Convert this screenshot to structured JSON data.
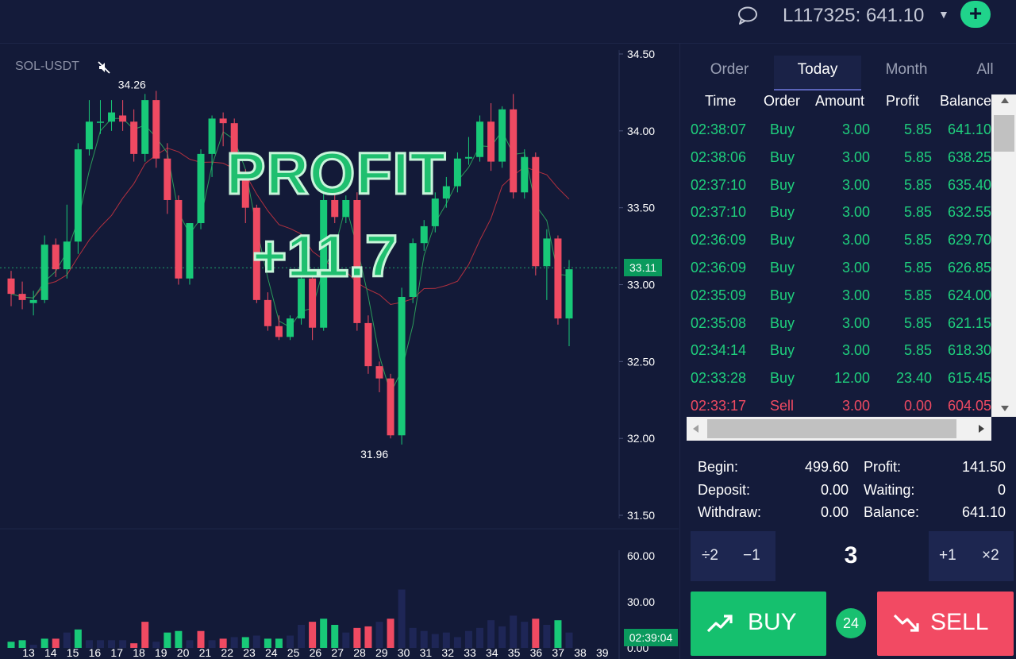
{
  "header": {
    "chat_icon": "chat-bubble-icon",
    "account_label": "L117325: 641.10",
    "add_icon": "plus-icon",
    "add_label": "+"
  },
  "chart": {
    "symbol": "SOL-USDT",
    "mute_icon": "mute-icon",
    "overlay_title": "PROFIT",
    "overlay_value": "+11.7",
    "price_tag": "33.11",
    "time_tag": "02:39:04",
    "colors": {
      "up": "#18c978",
      "down": "#ef4a62",
      "background": "#131a38",
      "ma_fast": "#2a9a5a",
      "ma_slow": "#b2303f",
      "volume_neutral": "#1e2656"
    }
  },
  "chart_data": {
    "type": "candlestick",
    "price_axis": {
      "ylim": [
        31.5,
        34.5
      ],
      "ticks": [
        "34.50",
        "34.00",
        "33.50",
        "33.00",
        "32.50",
        "32.00",
        "31.50"
      ]
    },
    "volume_axis": {
      "ylim": [
        0,
        60
      ],
      "ticks": [
        "60.00",
        "30.00",
        "0.00"
      ]
    },
    "x_ticks": [
      "13",
      "14",
      "15",
      "16",
      "17",
      "18",
      "19",
      "20",
      "21",
      "22",
      "23",
      "24",
      "25",
      "26",
      "27",
      "28",
      "29",
      "30",
      "31",
      "32",
      "33",
      "34",
      "35",
      "36",
      "37",
      "38",
      "39"
    ],
    "annotations": {
      "high_label": "34.26",
      "low_label": "31.96"
    },
    "candles": [
      {
        "o": 33.04,
        "h": 33.09,
        "l": 32.86,
        "c": 32.94
      },
      {
        "o": 32.94,
        "h": 33.02,
        "l": 32.84,
        "c": 32.9
      },
      {
        "o": 32.88,
        "h": 32.96,
        "l": 32.8,
        "c": 32.9
      },
      {
        "o": 32.9,
        "h": 33.32,
        "l": 32.88,
        "c": 33.26
      },
      {
        "o": 33.26,
        "h": 33.3,
        "l": 33.05,
        "c": 33.1
      },
      {
        "o": 33.1,
        "h": 33.52,
        "l": 33.04,
        "c": 33.28
      },
      {
        "o": 33.28,
        "h": 33.92,
        "l": 33.2,
        "c": 33.88
      },
      {
        "o": 33.88,
        "h": 34.2,
        "l": 33.84,
        "c": 34.06
      },
      {
        "o": 34.06,
        "h": 34.2,
        "l": 33.98,
        "c": 34.06
      },
      {
        "o": 34.06,
        "h": 34.2,
        "l": 34.0,
        "c": 34.12
      },
      {
        "o": 34.1,
        "h": 34.2,
        "l": 34.0,
        "c": 34.06
      },
      {
        "o": 34.06,
        "h": 34.14,
        "l": 33.8,
        "c": 33.85
      },
      {
        "o": 33.85,
        "h": 34.24,
        "l": 33.8,
        "c": 34.2
      },
      {
        "o": 34.2,
        "h": 34.26,
        "l": 33.76,
        "c": 33.82
      },
      {
        "o": 33.82,
        "h": 33.92,
        "l": 33.46,
        "c": 33.55
      },
      {
        "o": 33.55,
        "h": 33.58,
        "l": 33.0,
        "c": 33.04
      },
      {
        "o": 33.04,
        "h": 33.4,
        "l": 33.0,
        "c": 33.4
      },
      {
        "o": 33.4,
        "h": 33.88,
        "l": 33.36,
        "c": 33.85
      },
      {
        "o": 33.85,
        "h": 34.1,
        "l": 33.7,
        "c": 34.08
      },
      {
        "o": 34.08,
        "h": 34.12,
        "l": 33.9,
        "c": 34.05
      },
      {
        "o": 34.05,
        "h": 34.08,
        "l": 33.6,
        "c": 33.7
      },
      {
        "o": 33.7,
        "h": 33.75,
        "l": 33.4,
        "c": 33.5
      },
      {
        "o": 33.5,
        "h": 33.52,
        "l": 32.88,
        "c": 32.9
      },
      {
        "o": 32.9,
        "h": 32.95,
        "l": 32.7,
        "c": 32.73
      },
      {
        "o": 32.73,
        "h": 32.8,
        "l": 32.64,
        "c": 32.66
      },
      {
        "o": 32.66,
        "h": 32.8,
        "l": 32.64,
        "c": 32.78
      },
      {
        "o": 32.78,
        "h": 33.1,
        "l": 32.74,
        "c": 33.04
      },
      {
        "o": 33.04,
        "h": 33.08,
        "l": 32.64,
        "c": 32.72
      },
      {
        "o": 32.72,
        "h": 33.6,
        "l": 32.7,
        "c": 33.55
      },
      {
        "o": 33.55,
        "h": 33.62,
        "l": 33.4,
        "c": 33.44
      },
      {
        "o": 33.44,
        "h": 33.58,
        "l": 33.4,
        "c": 33.55
      },
      {
        "o": 33.55,
        "h": 33.6,
        "l": 32.7,
        "c": 32.75
      },
      {
        "o": 32.75,
        "h": 32.8,
        "l": 32.42,
        "c": 32.47
      },
      {
        "o": 32.47,
        "h": 32.5,
        "l": 32.3,
        "c": 32.39
      },
      {
        "o": 32.39,
        "h": 32.42,
        "l": 32.0,
        "c": 32.02
      },
      {
        "o": 32.02,
        "h": 32.98,
        "l": 31.96,
        "c": 32.92
      },
      {
        "o": 32.92,
        "h": 33.3,
        "l": 32.88,
        "c": 33.27
      },
      {
        "o": 33.27,
        "h": 33.42,
        "l": 33.22,
        "c": 33.38
      },
      {
        "o": 33.38,
        "h": 33.6,
        "l": 33.34,
        "c": 33.56
      },
      {
        "o": 33.56,
        "h": 33.7,
        "l": 33.5,
        "c": 33.64
      },
      {
        "o": 33.64,
        "h": 33.86,
        "l": 33.6,
        "c": 33.82
      },
      {
        "o": 33.82,
        "h": 33.96,
        "l": 33.78,
        "c": 33.83
      },
      {
        "o": 33.83,
        "h": 34.1,
        "l": 33.8,
        "c": 34.06
      },
      {
        "o": 34.06,
        "h": 34.18,
        "l": 33.74,
        "c": 33.8
      },
      {
        "o": 33.8,
        "h": 34.16,
        "l": 33.76,
        "c": 34.14
      },
      {
        "o": 34.14,
        "h": 34.24,
        "l": 33.56,
        "c": 33.6
      },
      {
        "o": 33.6,
        "h": 33.88,
        "l": 33.56,
        "c": 33.83
      },
      {
        "o": 33.83,
        "h": 33.86,
        "l": 33.06,
        "c": 33.12
      },
      {
        "o": 33.12,
        "h": 33.36,
        "l": 32.9,
        "c": 33.3
      },
      {
        "o": 33.3,
        "h": 33.32,
        "l": 32.74,
        "c": 32.78
      },
      {
        "o": 32.78,
        "h": 33.16,
        "l": 32.6,
        "c": 33.1
      }
    ],
    "volumes": [
      {
        "v": 4,
        "d": "up"
      },
      {
        "v": 5,
        "d": "up"
      },
      {
        "v": 2,
        "d": "neutral"
      },
      {
        "v": 6,
        "d": "up"
      },
      {
        "v": 6,
        "d": "down"
      },
      {
        "v": 10,
        "d": "neutral"
      },
      {
        "v": 12,
        "d": "up"
      },
      {
        "v": 5,
        "d": "neutral"
      },
      {
        "v": 5,
        "d": "neutral"
      },
      {
        "v": 5,
        "d": "neutral"
      },
      {
        "v": 5,
        "d": "neutral"
      },
      {
        "v": 3,
        "d": "down"
      },
      {
        "v": 17,
        "d": "down"
      },
      {
        "v": 4,
        "d": "neutral"
      },
      {
        "v": 10,
        "d": "up"
      },
      {
        "v": 11,
        "d": "up"
      },
      {
        "v": 5,
        "d": "neutral"
      },
      {
        "v": 11,
        "d": "down"
      },
      {
        "v": 5,
        "d": "neutral"
      },
      {
        "v": 6,
        "d": "down"
      },
      {
        "v": 7,
        "d": "neutral"
      },
      {
        "v": 7,
        "d": "up"
      },
      {
        "v": 8,
        "d": "neutral"
      },
      {
        "v": 6,
        "d": "up"
      },
      {
        "v": 6,
        "d": "up"
      },
      {
        "v": 8,
        "d": "neutral"
      },
      {
        "v": 15,
        "d": "neutral"
      },
      {
        "v": 17,
        "d": "down"
      },
      {
        "v": 19,
        "d": "up"
      },
      {
        "v": 15,
        "d": "up"
      },
      {
        "v": 10,
        "d": "neutral"
      },
      {
        "v": 13,
        "d": "down"
      },
      {
        "v": 14,
        "d": "down"
      },
      {
        "v": 17,
        "d": "neutral"
      },
      {
        "v": 19,
        "d": "down"
      },
      {
        "v": 38,
        "d": "neutral"
      },
      {
        "v": 13,
        "d": "neutral"
      },
      {
        "v": 11,
        "d": "neutral"
      },
      {
        "v": 9,
        "d": "neutral"
      },
      {
        "v": 10,
        "d": "neutral"
      },
      {
        "v": 7,
        "d": "neutral"
      },
      {
        "v": 11,
        "d": "neutral"
      },
      {
        "v": 13,
        "d": "neutral"
      },
      {
        "v": 18,
        "d": "neutral"
      },
      {
        "v": 14,
        "d": "neutral"
      },
      {
        "v": 21,
        "d": "neutral"
      },
      {
        "v": 17,
        "d": "neutral"
      },
      {
        "v": 19,
        "d": "down"
      },
      {
        "v": 15,
        "d": "neutral"
      },
      {
        "v": 18,
        "d": "up"
      },
      {
        "v": 10,
        "d": "neutral"
      }
    ]
  },
  "tabs": [
    "Order",
    "Today",
    "Month",
    "All"
  ],
  "table": {
    "headers": [
      "Time",
      "Order",
      "Amount",
      "Profit",
      "Balance"
    ],
    "rows": [
      {
        "time": "02:38:07",
        "order": "Buy",
        "amount": "3.00",
        "profit": "5.85",
        "balance": "641.10",
        "side": "buy"
      },
      {
        "time": "02:38:06",
        "order": "Buy",
        "amount": "3.00",
        "profit": "5.85",
        "balance": "638.25",
        "side": "buy"
      },
      {
        "time": "02:37:10",
        "order": "Buy",
        "amount": "3.00",
        "profit": "5.85",
        "balance": "635.40",
        "side": "buy"
      },
      {
        "time": "02:37:10",
        "order": "Buy",
        "amount": "3.00",
        "profit": "5.85",
        "balance": "632.55",
        "side": "buy"
      },
      {
        "time": "02:36:09",
        "order": "Buy",
        "amount": "3.00",
        "profit": "5.85",
        "balance": "629.70",
        "side": "buy"
      },
      {
        "time": "02:36:09",
        "order": "Buy",
        "amount": "3.00",
        "profit": "5.85",
        "balance": "626.85",
        "side": "buy"
      },
      {
        "time": "02:35:09",
        "order": "Buy",
        "amount": "3.00",
        "profit": "5.85",
        "balance": "624.00",
        "side": "buy"
      },
      {
        "time": "02:35:08",
        "order": "Buy",
        "amount": "3.00",
        "profit": "5.85",
        "balance": "621.15",
        "side": "buy"
      },
      {
        "time": "02:34:14",
        "order": "Buy",
        "amount": "3.00",
        "profit": "5.85",
        "balance": "618.30",
        "side": "buy"
      },
      {
        "time": "02:33:28",
        "order": "Buy",
        "amount": "12.00",
        "profit": "23.40",
        "balance": "615.45",
        "side": "buy"
      },
      {
        "time": "02:33:17",
        "order": "Sell",
        "amount": "3.00",
        "profit": "0.00",
        "balance": "604.05",
        "side": "sell"
      }
    ]
  },
  "summary": {
    "begin_label": "Begin:",
    "begin_value": "499.60",
    "deposit_label": "Deposit:",
    "deposit_value": "0.00",
    "withdraw_label": "Withdraw:",
    "withdraw_value": "0.00",
    "profit_label": "Profit:",
    "profit_value": "141.50",
    "waiting_label": "Waiting:",
    "waiting_value": "0",
    "balance_label": "Balance:",
    "balance_value": "641.10"
  },
  "controls": {
    "halve_label": "÷2",
    "minus_label": "−1",
    "quantity": "3",
    "plus_label": "+1",
    "double_label": "×2",
    "buy_label": "BUY",
    "buy_icon": "trend-up-icon",
    "sell_label": "SELL",
    "sell_icon": "trend-down-icon",
    "count_badge": "24"
  }
}
